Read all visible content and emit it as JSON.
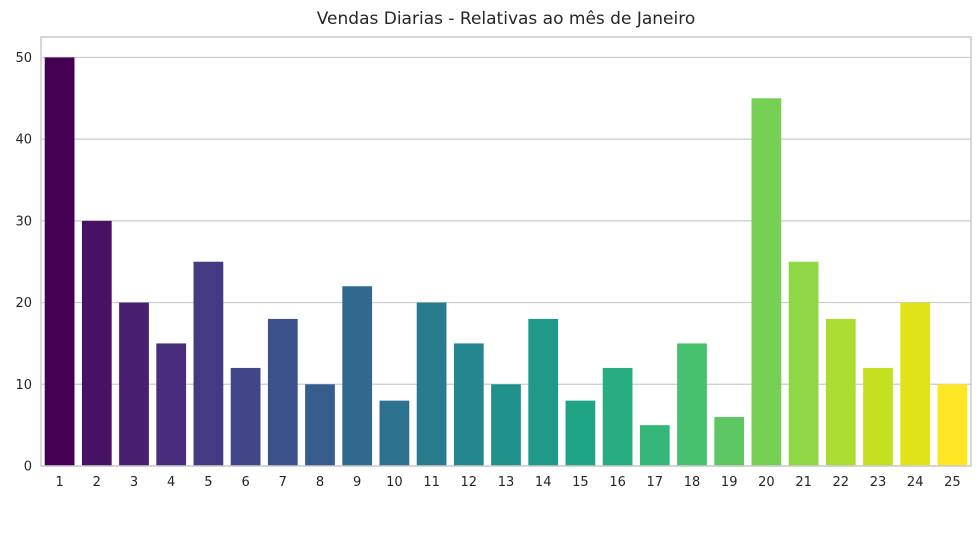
{
  "chart_data": {
    "type": "bar",
    "title": "Vendas Diarias - Relativas ao mês de Janeiro",
    "xlabel": "",
    "ylabel": "",
    "categories": [
      "1",
      "2",
      "3",
      "4",
      "5",
      "6",
      "7",
      "8",
      "9",
      "10",
      "11",
      "12",
      "13",
      "14",
      "15",
      "16",
      "17",
      "18",
      "19",
      "20",
      "21",
      "22",
      "23",
      "24",
      "25"
    ],
    "values": [
      50,
      30,
      20,
      15,
      25,
      12,
      18,
      10,
      22,
      8,
      20,
      15,
      10,
      18,
      8,
      12,
      5,
      15,
      6,
      45,
      25,
      18,
      12,
      20,
      10
    ],
    "ylim": [
      0,
      52.5
    ],
    "yticks": [
      0,
      10,
      20,
      30,
      40,
      50
    ],
    "grid": "horizontal",
    "colors": [
      "#440154",
      "#471164",
      "#481f70",
      "#472d7b",
      "#443a83",
      "#404688",
      "#3b528b",
      "#365d8d",
      "#31688e",
      "#2c728e",
      "#287c8e",
      "#24868e",
      "#21918c",
      "#1f9a8a",
      "#20a486",
      "#27ad81",
      "#35b779",
      "#47c16e",
      "#5dc863",
      "#75d054",
      "#8fd744",
      "#aadc32",
      "#c5e021",
      "#dfe318",
      "#fde725"
    ],
    "grid_color": "#cccccc",
    "axis_color": "#cccccc"
  }
}
